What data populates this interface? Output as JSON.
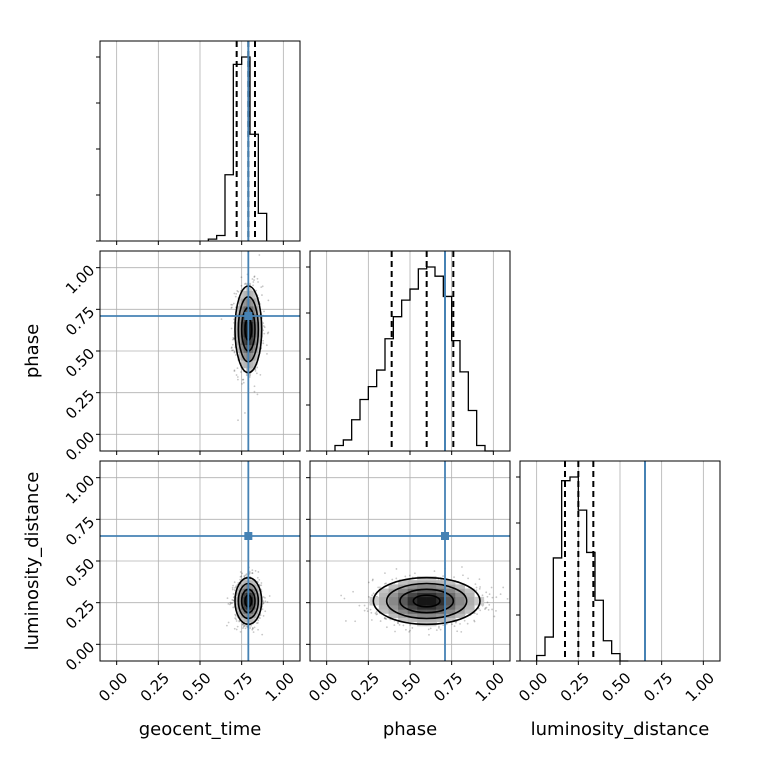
{
  "chart_data": {
    "type": "corner",
    "parameters": [
      "geocent_time",
      "phase",
      "luminosity_distance"
    ],
    "axis_range": [
      -0.1,
      1.1
    ],
    "ticks": [
      0.0,
      0.25,
      0.5,
      0.75,
      1.0
    ],
    "tick_labels": [
      "0.00",
      "0.25",
      "0.50",
      "0.75",
      "1.00"
    ],
    "truths": {
      "geocent_time": 0.79,
      "phase": 0.71,
      "luminosity_distance": 0.65
    },
    "truth_color": "#4682b4",
    "grid": true,
    "marginals": [
      {
        "parameter": "geocent_time",
        "bin_edges": [
          0.55,
          0.6,
          0.65,
          0.7,
          0.75,
          0.8,
          0.85,
          0.9
        ],
        "counts": [
          1,
          3,
          36,
          96,
          100,
          58,
          15
        ],
        "quantiles": [
          0.72,
          0.79,
          0.83
        ]
      },
      {
        "parameter": "phase",
        "bin_edges": [
          0.05,
          0.1,
          0.15,
          0.2,
          0.25,
          0.3,
          0.35,
          0.4,
          0.45,
          0.5,
          0.55,
          0.6,
          0.65,
          0.7,
          0.75,
          0.8,
          0.85,
          0.9,
          0.95,
          1.0
        ],
        "counts": [
          3,
          6,
          17,
          28,
          35,
          44,
          61,
          73,
          82,
          88,
          99,
          100,
          95,
          84,
          60,
          43,
          22,
          3,
          0
        ],
        "quantiles": [
          0.39,
          0.6,
          0.76
        ]
      },
      {
        "parameter": "luminosity_distance",
        "bin_edges": [
          0.0,
          0.05,
          0.1,
          0.15,
          0.2,
          0.25,
          0.3,
          0.35,
          0.4,
          0.45,
          0.5,
          0.55
        ],
        "counts": [
          3,
          13,
          56,
          98,
          100,
          82,
          59,
          33,
          11,
          4,
          0
        ],
        "quantiles": [
          0.17,
          0.25,
          0.34
        ]
      }
    ],
    "joints": [
      {
        "x": "geocent_time",
        "y": "phase",
        "center": [
          0.79,
          0.63
        ],
        "sigma": [
          0.04,
          0.13
        ]
      },
      {
        "x": "geocent_time",
        "y": "luminosity_distance",
        "center": [
          0.79,
          0.26
        ],
        "sigma": [
          0.04,
          0.07
        ]
      },
      {
        "x": "phase",
        "y": "luminosity_distance",
        "center": [
          0.6,
          0.26
        ],
        "sigma": [
          0.16,
          0.07
        ]
      }
    ]
  }
}
